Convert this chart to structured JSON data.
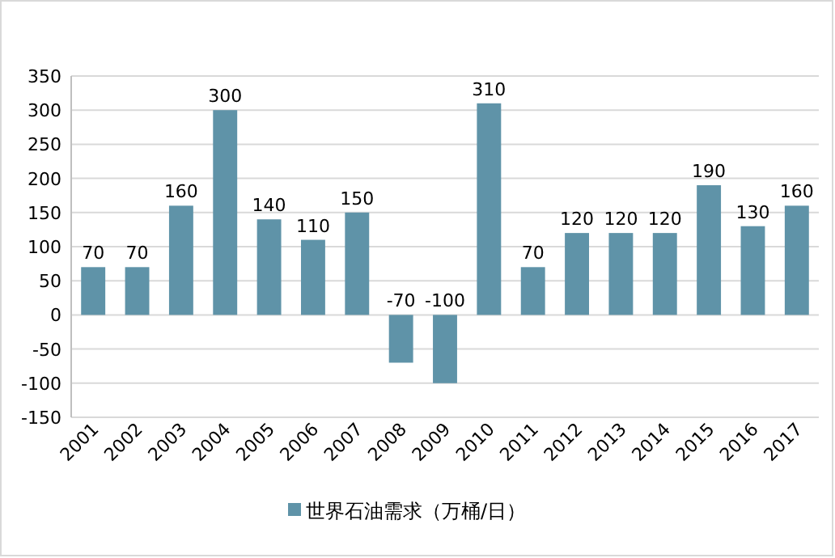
{
  "chart_data": {
    "type": "bar",
    "categories": [
      "2001",
      "2002",
      "2003",
      "2004",
      "2005",
      "2006",
      "2007",
      "2008",
      "2009",
      "2010",
      "2011",
      "2012",
      "2013",
      "2014",
      "2015",
      "2016",
      "2017"
    ],
    "series": [
      {
        "name": "世界石油需求（万桶/日）",
        "color": "#5f93a8",
        "values": [
          70,
          70,
          160,
          300,
          140,
          110,
          150,
          -70,
          -100,
          310,
          70,
          120,
          120,
          120,
          190,
          130,
          160
        ]
      }
    ],
    "ylim": [
      -150,
      350
    ],
    "yticks": [
      -150,
      -100,
      -50,
      0,
      50,
      100,
      150,
      200,
      250,
      300,
      350
    ],
    "grid": "y",
    "legend": "bottom",
    "data_labels": true
  }
}
